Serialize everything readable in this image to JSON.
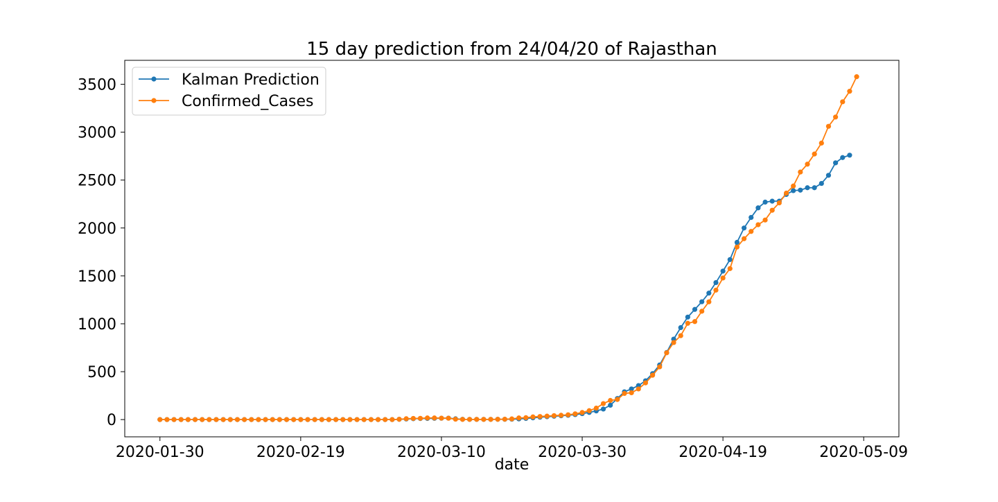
{
  "chart_data": {
    "type": "line",
    "title": "15 day prediction from 24/04/20 of Rajasthan",
    "xlabel": "date",
    "ylabel": "",
    "x_start": "2020-01-30",
    "x_end": "2020-05-09",
    "xlim": [
      "2020-01-25",
      "2020-05-14"
    ],
    "ylim": [
      -180,
      3750
    ],
    "xticks": [
      "2020-01-30",
      "2020-02-19",
      "2020-03-10",
      "2020-03-30",
      "2020-04-19",
      "2020-05-09"
    ],
    "yticks": [
      0,
      500,
      1000,
      1500,
      2000,
      2500,
      3000,
      3500
    ],
    "legend": {
      "position": "top-left"
    },
    "grid": false,
    "series": [
      {
        "name": "Kalman Prediction",
        "color": "#1f77b4",
        "marker": "circle",
        "values": [
          0,
          0,
          0,
          0,
          0,
          0,
          0,
          0,
          0,
          0,
          0,
          0,
          0,
          0,
          0,
          0,
          0,
          0,
          0,
          0,
          0,
          0,
          0,
          0,
          0,
          0,
          0,
          0,
          0,
          0,
          0,
          0,
          0,
          0,
          3,
          6,
          9,
          11,
          12,
          13,
          14,
          15,
          8,
          3,
          2,
          2,
          2,
          2,
          3,
          3,
          4,
          7,
          12,
          18,
          25,
          30,
          35,
          40,
          45,
          52,
          62,
          75,
          90,
          110,
          150,
          220,
          290,
          320,
          355,
          405,
          480,
          570,
          700,
          840,
          960,
          1070,
          1150,
          1230,
          1320,
          1430,
          1550,
          1670,
          1850,
          2000,
          2110,
          2210,
          2270,
          2280,
          2280,
          2350,
          2390,
          2395,
          2420,
          2420,
          2465,
          2550,
          2680,
          2735,
          2760
        ]
      },
      {
        "name": "Confirmed_Cases",
        "color": "#ff7f0e",
        "marker": "circle",
        "values": [
          0,
          0,
          0,
          0,
          0,
          0,
          0,
          0,
          0,
          0,
          0,
          0,
          0,
          0,
          0,
          0,
          0,
          0,
          0,
          0,
          0,
          0,
          0,
          0,
          0,
          0,
          0,
          0,
          0,
          0,
          0,
          0,
          0,
          0,
          3,
          9,
          12,
          13,
          17,
          17,
          15,
          14,
          4,
          2,
          2,
          2,
          2,
          2,
          3,
          4,
          7,
          17,
          20,
          28,
          32,
          36,
          41,
          45,
          50,
          60,
          74,
          93,
          120,
          167,
          200,
          210,
          273,
          280,
          320,
          383,
          463,
          550,
          697,
          804,
          876,
          1005,
          1023,
          1131,
          1229,
          1351,
          1478,
          1576,
          1801,
          1888,
          1964,
          2034,
          2083,
          2185,
          2262,
          2364,
          2438,
          2584,
          2666,
          2772,
          2886,
          3061,
          3158,
          3317,
          3427,
          3579
        ]
      }
    ]
  }
}
